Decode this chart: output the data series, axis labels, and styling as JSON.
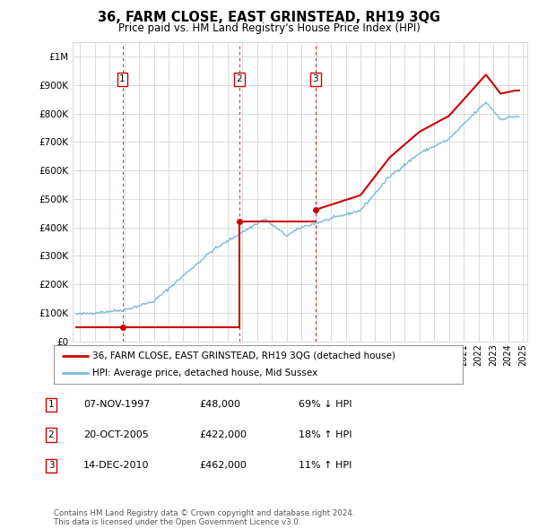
{
  "title": "36, FARM CLOSE, EAST GRINSTEAD, RH19 3QG",
  "subtitle": "Price paid vs. HM Land Registry's House Price Index (HPI)",
  "sale_prices": [
    48000,
    422000,
    462000
  ],
  "sale_labels": [
    "1",
    "2",
    "3"
  ],
  "hpi_color": "#7ab8d9",
  "price_color": "#cc0000",
  "dashed_color": "#cc0000",
  "ylim": [
    0,
    1050000
  ],
  "yticks": [
    0,
    100000,
    200000,
    300000,
    400000,
    500000,
    600000,
    700000,
    800000,
    900000,
    1000000
  ],
  "ytick_labels": [
    "£0",
    "£100K",
    "£200K",
    "£300K",
    "£400K",
    "£500K",
    "£600K",
    "£700K",
    "£800K",
    "£900K",
    "£1M"
  ],
  "legend_line1": "36, FARM CLOSE, EAST GRINSTEAD, RH19 3QG (detached house)",
  "legend_line2": "HPI: Average price, detached house, Mid Sussex",
  "table_entries": [
    {
      "num": "1",
      "date": "07-NOV-1997",
      "price": "£48,000",
      "hpi": "69% ↓ HPI"
    },
    {
      "num": "2",
      "date": "20-OCT-2005",
      "price": "£422,000",
      "hpi": "18% ↑ HPI"
    },
    {
      "num": "3",
      "date": "14-DEC-2010",
      "price": "£462,000",
      "hpi": "11% ↑ HPI"
    }
  ],
  "footer": "Contains HM Land Registry data © Crown copyright and database right 2024.\nThis data is licensed under the Open Government Licence v3.0.",
  "background_color": "#ffffff",
  "grid_color": "#cccccc"
}
